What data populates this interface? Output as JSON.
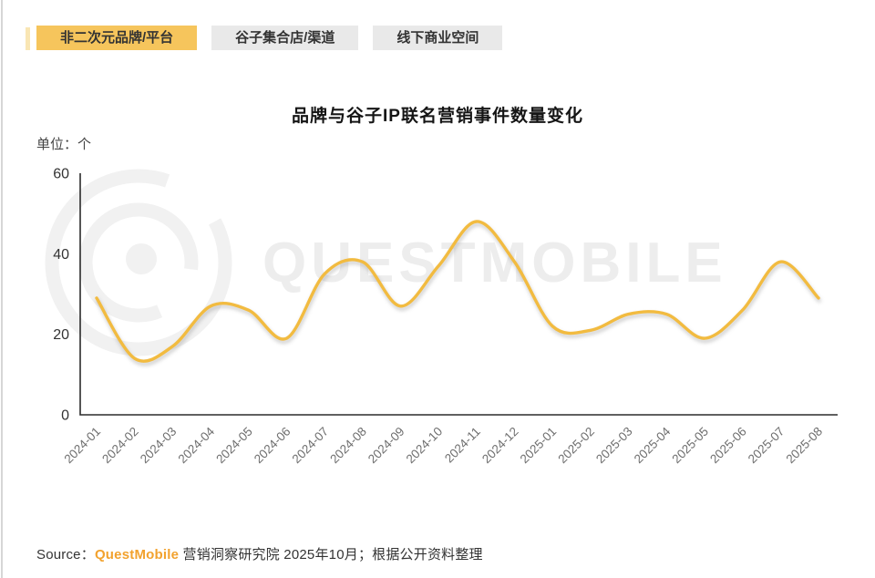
{
  "tabs": [
    {
      "label": "非二次元品牌/平台",
      "active": true
    },
    {
      "label": "谷子集合店/渠道",
      "active": false
    },
    {
      "label": "线下商业空间",
      "active": false
    }
  ],
  "chart": {
    "title": "品牌与谷子IP联名营销事件数量变化",
    "unit_label": "单位：个"
  },
  "chart_data": {
    "type": "line",
    "title": "品牌与谷子IP联名营销事件数量变化",
    "ylabel": "单位：个",
    "xlabel": "",
    "x": [
      "2024-01",
      "2024-02",
      "2024-03",
      "2024-04",
      "2024-05",
      "2024-06",
      "2024-07",
      "2024-08",
      "2024-09",
      "2024-10",
      "2024-11",
      "2024-12",
      "2025-01",
      "2025-02",
      "2025-03",
      "2025-04",
      "2025-05",
      "2025-06",
      "2025-07",
      "2025-08"
    ],
    "series": [
      {
        "name": "品牌与谷子IP联名营销事件数量",
        "values": [
          29,
          14,
          17,
          27,
          26,
          19,
          35,
          38,
          27,
          37,
          48,
          38,
          22,
          21,
          25,
          25,
          19,
          26,
          38,
          29
        ]
      }
    ],
    "ylim": [
      0,
      60
    ],
    "yticks": [
      0,
      20,
      40,
      60
    ],
    "grid": "off",
    "legend": "none",
    "smooth": true
  },
  "watermark": {
    "text": "QUESTMOBILE"
  },
  "source": {
    "prefix": "Source：",
    "brand": "QuestMobile",
    "rest": " 营销洞察研究院 2025年10月；根据公开资料整理"
  },
  "colors": {
    "line": "#f2bb40",
    "active_tab_bg": "#f6c55c",
    "inactive_tab_bg": "#e9e9e9",
    "axis": "#2b2b2b",
    "x_label": "#6e6e6e",
    "y_label": "#333333",
    "brand_orange": "#f2a22e",
    "watermark": "#ededed"
  }
}
